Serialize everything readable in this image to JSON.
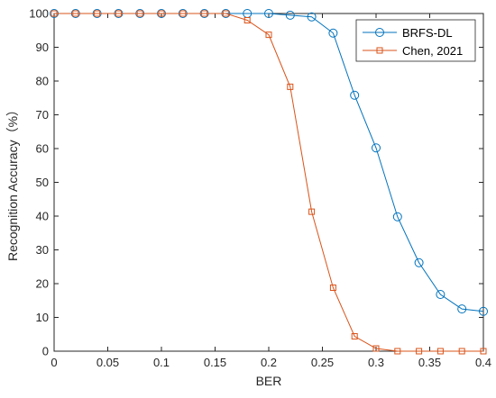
{
  "chart_data": {
    "type": "line",
    "xlabel": "BER",
    "ylabel": "Recognition Accuracy（%）",
    "xlim": [
      0,
      0.4
    ],
    "ylim": [
      0,
      100
    ],
    "xticks": [
      0,
      0.05,
      0.1,
      0.15,
      0.2,
      0.25,
      0.3,
      0.35,
      0.4
    ],
    "xtick_labels": [
      "0",
      "0.05",
      "0.1",
      "0.15",
      "0.2",
      "0.25",
      "0.3",
      "0.35",
      "0.4"
    ],
    "yticks": [
      0,
      10,
      20,
      30,
      40,
      50,
      60,
      70,
      80,
      90,
      100
    ],
    "ytick_labels": [
      "0",
      "10",
      "20",
      "30",
      "40",
      "50",
      "60",
      "70",
      "80",
      "90",
      "100"
    ],
    "grid": false,
    "legend_position": "top-right",
    "x": [
      0,
      0.02,
      0.04,
      0.06,
      0.08,
      0.1,
      0.12,
      0.14,
      0.16,
      0.18,
      0.2,
      0.22,
      0.24,
      0.26,
      0.28,
      0.3,
      0.32,
      0.34,
      0.36,
      0.38,
      0.4
    ],
    "series": [
      {
        "name": "BRFS-DL",
        "color": "#0072BD",
        "marker": "circle",
        "values": [
          100,
          100,
          100,
          100,
          100,
          100,
          100,
          100,
          100,
          100,
          100,
          99.5,
          99,
          94.2,
          75.8,
          60.2,
          39.8,
          26.2,
          16.8,
          12.5,
          11.8
        ]
      },
      {
        "name": "Chen, 2021",
        "color": "#D95319",
        "marker": "square",
        "values": [
          100,
          100,
          100,
          100,
          100,
          100,
          100,
          100,
          100,
          98,
          93.7,
          78.3,
          41.3,
          18.8,
          4.4,
          0.8,
          0,
          0,
          0,
          0,
          0
        ]
      }
    ]
  }
}
